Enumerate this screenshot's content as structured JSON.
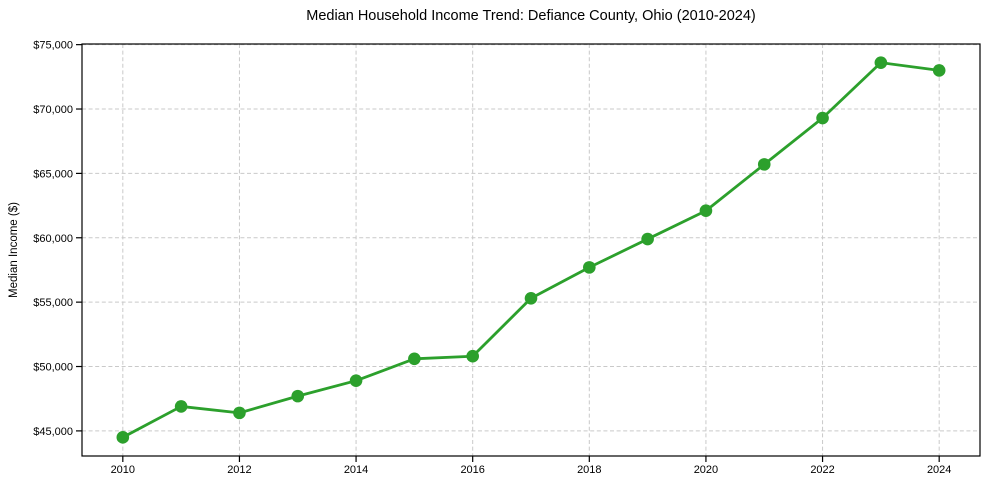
{
  "chart_data": {
    "type": "line",
    "title": "Median Household Income Trend: Defiance County, Ohio (2010-2024)",
    "xlabel": "",
    "ylabel": "Median Income ($)",
    "series": [
      {
        "name": "Median household income",
        "x": [
          2010,
          2011,
          2012,
          2013,
          2014,
          2015,
          2016,
          2017,
          2018,
          2019,
          2020,
          2021,
          2022,
          2023,
          2024
        ],
        "values": [
          44500,
          46900,
          46400,
          47700,
          48900,
          50600,
          50800,
          55300,
          57700,
          59900,
          62100,
          65700,
          69300,
          73600,
          73000
        ]
      }
    ],
    "x_ticks": [
      2010,
      2012,
      2014,
      2016,
      2018,
      2020,
      2022,
      2024
    ],
    "x_tick_labels": [
      "2010",
      "2012",
      "2014",
      "2016",
      "2018",
      "2020",
      "2022",
      "2024"
    ],
    "y_ticks": [
      45000,
      50000,
      55000,
      60000,
      65000,
      70000,
      75000
    ],
    "y_tick_labels": [
      "$45,000",
      "$50,000",
      "$55,000",
      "$60,000",
      "$65,000",
      "$70,000",
      "$75,000"
    ],
    "xlim": [
      2009.3,
      2024.7
    ],
    "ylim": [
      43050,
      75050
    ],
    "grid": "dashed-both-axes",
    "legend": "none",
    "marker": "circle",
    "colors": {
      "line": "#2ca02c",
      "marker": "#2ca02c",
      "grid": "#c9c9c9",
      "spine": "#000000",
      "text": "#000000",
      "background": "#ffffff"
    }
  }
}
